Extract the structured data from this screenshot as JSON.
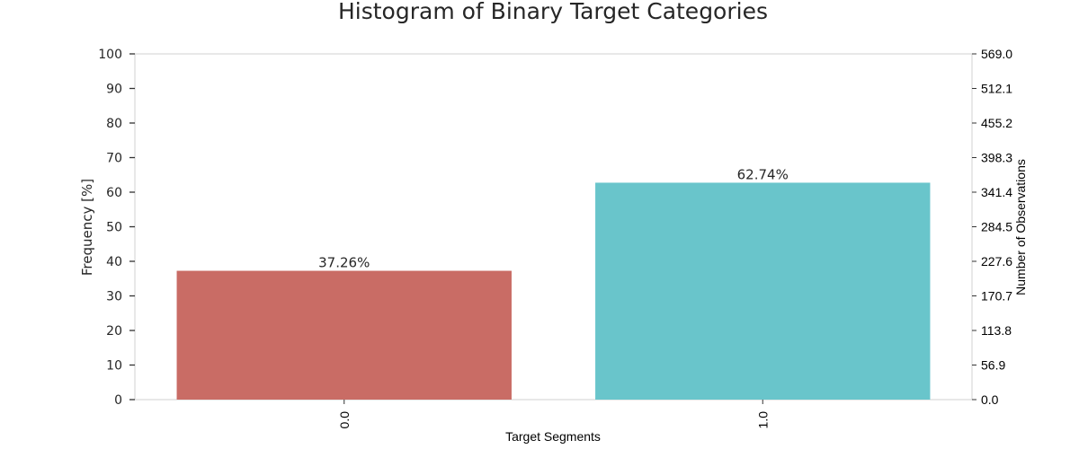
{
  "chart_data": {
    "type": "bar",
    "title": "Histogram of Binary Target Categories",
    "xlabel": "Target Segments",
    "ylabel": "Frequency [%]",
    "ylabel_right": "Number of Observations",
    "categories": [
      "0.0",
      "1.0"
    ],
    "values": [
      37.26,
      62.74
    ],
    "data_labels": [
      "37.26%",
      "62.74%"
    ],
    "colors": [
      "#c96c65",
      "#69c5cb"
    ],
    "ylim": [
      0,
      100
    ],
    "yticks": [
      "0",
      "10",
      "20",
      "30",
      "40",
      "50",
      "60",
      "70",
      "80",
      "90",
      "100"
    ],
    "ylim_right": [
      0,
      569
    ],
    "yticks_right": [
      "0.0",
      "56.9",
      "113.8",
      "170.7",
      "227.6",
      "284.5",
      "341.4",
      "398.3",
      "455.2",
      "512.1",
      "569.0"
    ],
    "grid": false,
    "xtick_rotation": "vertical"
  }
}
